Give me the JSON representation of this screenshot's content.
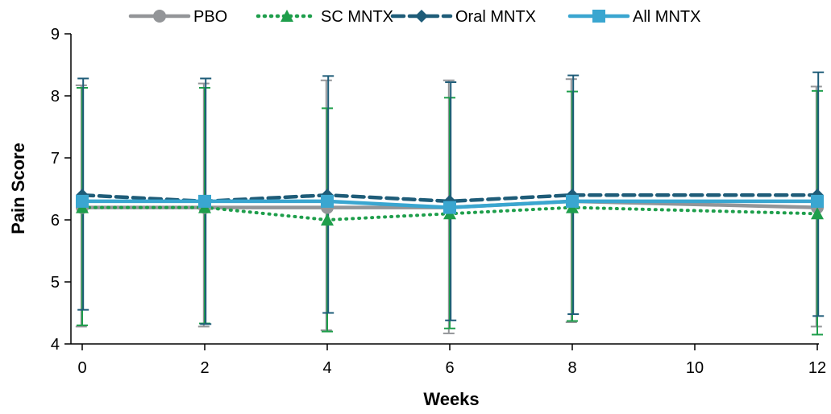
{
  "chart_data": {
    "type": "line",
    "title": "",
    "xlabel": "Weeks",
    "ylabel": "Pain Score",
    "x": [
      0,
      2,
      4,
      6,
      8,
      12
    ],
    "x_ticks": [
      0,
      2,
      4,
      6,
      8,
      10,
      12
    ],
    "y_ticks": [
      4,
      5,
      6,
      7,
      8,
      9
    ],
    "xlim": [
      0,
      12
    ],
    "ylim": [
      4,
      9
    ],
    "grid": false,
    "legend_position": "top",
    "series": [
      {
        "name": "PBO",
        "color": "#939598",
        "line_style": "solid",
        "marker": "circle",
        "values": [
          6.2,
          6.2,
          6.2,
          6.2,
          6.3,
          6.2
        ],
        "error_low": [
          4.28,
          4.28,
          4.22,
          4.17,
          4.35,
          4.28
        ],
        "error_high": [
          8.17,
          8.2,
          8.25,
          8.25,
          8.27,
          8.15
        ]
      },
      {
        "name": "SC MNTX",
        "color": "#1e9e4b",
        "line_style": "dotted",
        "marker": "triangle",
        "values": [
          6.2,
          6.2,
          6.0,
          6.1,
          6.2,
          6.1
        ],
        "error_low": [
          4.3,
          4.33,
          4.2,
          4.25,
          4.37,
          4.15
        ],
        "error_high": [
          8.13,
          8.13,
          7.8,
          7.97,
          8.07,
          8.08
        ]
      },
      {
        "name": "Oral MNTX",
        "color": "#1e5c78",
        "line_style": "dashed",
        "marker": "diamond",
        "values": [
          6.4,
          6.3,
          6.4,
          6.3,
          6.4,
          6.4
        ],
        "error_low": [
          4.55,
          4.32,
          4.5,
          4.38,
          4.48,
          4.45
        ],
        "error_high": [
          8.28,
          8.28,
          8.32,
          8.22,
          8.33,
          8.38
        ]
      },
      {
        "name": "All MNTX",
        "color": "#3aa6d0",
        "line_style": "solid",
        "marker": "square",
        "values": [
          6.3,
          6.3,
          6.3,
          6.2,
          6.3,
          6.3
        ],
        "error_low": [],
        "error_high": []
      }
    ]
  }
}
